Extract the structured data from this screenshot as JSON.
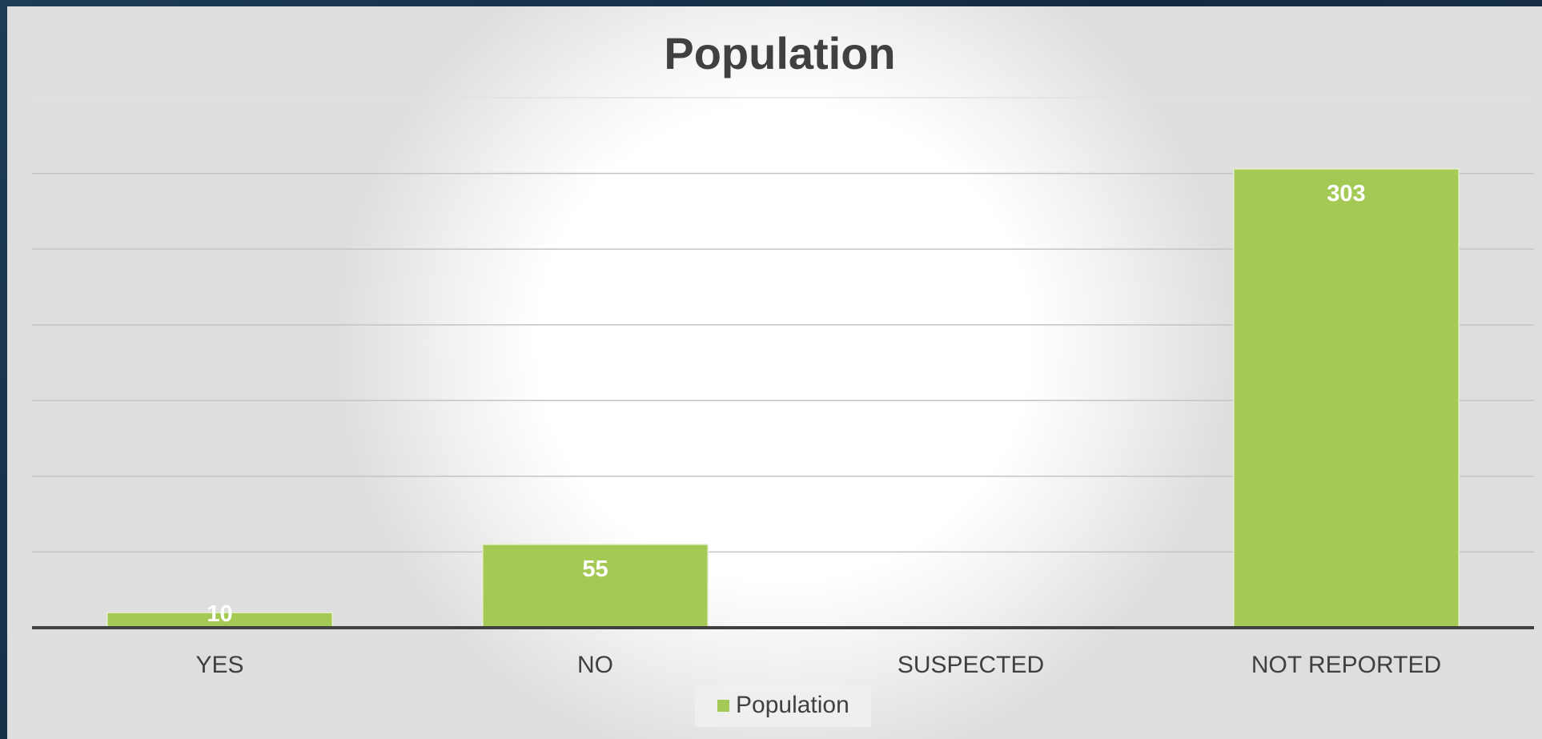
{
  "chart_data": {
    "type": "bar",
    "title": "Population",
    "categories": [
      "YES",
      "NO",
      "SUSPECTED",
      "NOT REPORTED"
    ],
    "series": [
      {
        "name": "Population",
        "values": [
          10,
          55,
          null,
          303
        ],
        "labels": [
          "10",
          "55",
          "",
          "303"
        ]
      }
    ],
    "ylim": [
      0,
      350
    ],
    "grid": true,
    "legend_position": "bottom",
    "bar_color": "#a5c955",
    "label_color": "#ffffff"
  }
}
